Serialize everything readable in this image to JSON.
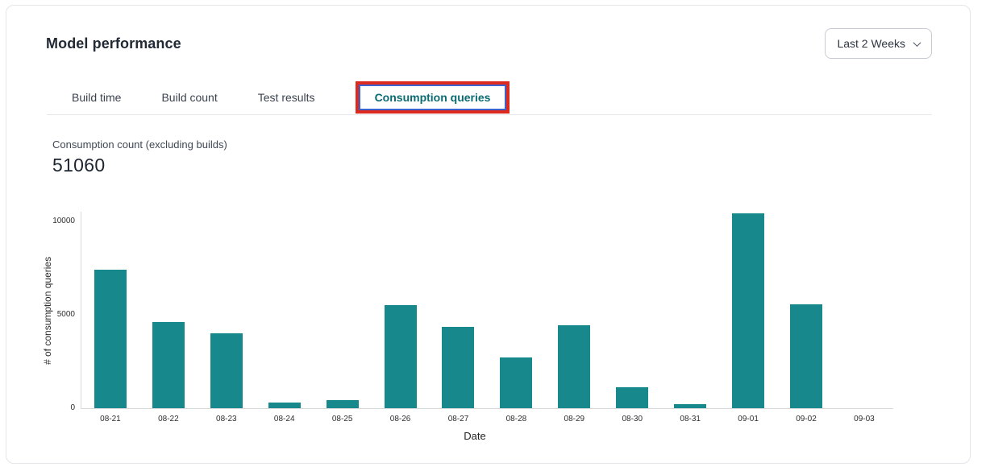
{
  "card": {
    "title": "Model performance",
    "range_selector": {
      "value": "Last 2 Weeks"
    },
    "tabs": [
      {
        "label": "Build time"
      },
      {
        "label": "Build count"
      },
      {
        "label": "Test results"
      },
      {
        "label": "Consumption queries"
      }
    ],
    "active_tab": "Consumption queries",
    "metric": {
      "label": "Consumption count (excluding builds)",
      "value": "51060"
    }
  },
  "colors": {
    "bar": "#17898d",
    "active_tab_text": "#0a6b72",
    "annotation_red": "#dc2a1e",
    "annotation_inner_blue": "#3a63cf",
    "axis_line": "#d9d9d9",
    "text_dark": "#222a35"
  },
  "chart_data": {
    "type": "bar",
    "categories": [
      "08-21",
      "08-22",
      "08-23",
      "08-24",
      "08-25",
      "08-26",
      "08-27",
      "08-28",
      "08-29",
      "08-30",
      "08-31",
      "09-01",
      "09-02",
      "09-03"
    ],
    "values": [
      7400,
      4600,
      4020,
      300,
      430,
      5500,
      4350,
      2700,
      4450,
      1120,
      230,
      10400,
      5560,
      0
    ],
    "title": "",
    "xlabel": "Date",
    "ylabel": "# of consumption queries",
    "ylim": [
      0,
      10500
    ],
    "yticks": [
      0,
      5000,
      10000
    ],
    "grid": false,
    "legend": null,
    "bar_color": "#17898d"
  }
}
